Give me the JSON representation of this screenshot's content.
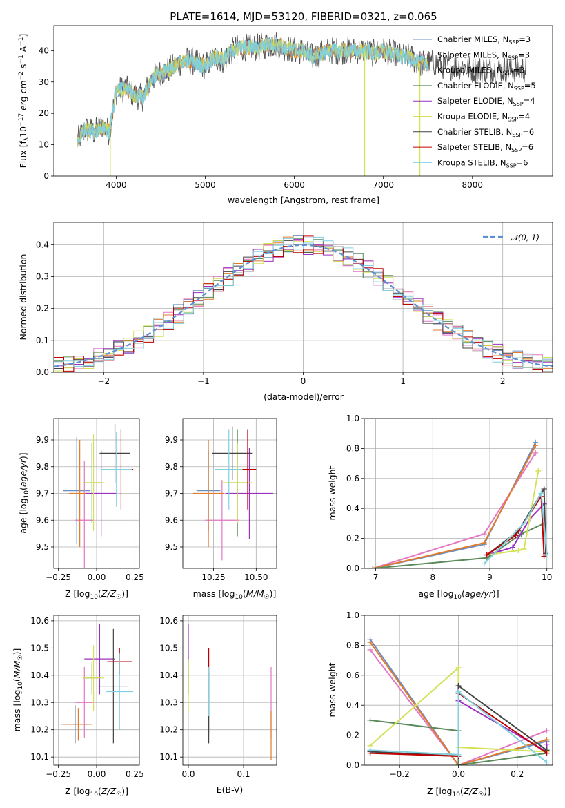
{
  "figure_title": "PLATE=1614, MJD=53120, FIBERID=0321, z=0.065",
  "colors": {
    "Chabrier MILES": "#6c8ebf",
    "Salpeter MILES": "#e377c2",
    "Kroupa MILES": "#e07b2a",
    "Chabrier ELODIE": "#5a8a5a",
    "Salpeter ELODIE": "#9b30c0",
    "Kroupa ELODIE": "#d4e157",
    "Chabrier STELIB": "#444444",
    "Salpeter STELIB": "#c00000",
    "Kroupa STELIB": "#80d0e0"
  },
  "chart_data": [
    {
      "id": "spectrum",
      "type": "line",
      "title": "PLATE=1614, MJD=53120, FIBERID=0321, z=0.065",
      "xlabel": "wavelength [Angstrom, rest frame]",
      "ylabel": "Flux [f_λ 10^-17 erg cm^-2 s^-1 A^-1]",
      "xlim": [
        3300,
        8900
      ],
      "ylim": [
        0,
        48
      ],
      "xticks": [
        4000,
        5000,
        6000,
        7000,
        8000
      ],
      "yticks": [
        0,
        10,
        20,
        30,
        40
      ],
      "grid": false,
      "legend_position": "top-right",
      "legend": [
        "Chabrier MILES, N_SSP=3",
        "Salpeter MILES, N_SSP=3",
        "Kroupa MILES, N_SSP=3",
        "Chabrier ELODIE, N_SSP=5",
        "Salpeter ELODIE, N_SSP=4",
        "Kroupa ELODIE, N_SSP=4",
        "Chabrier STELIB, N_SSP=6",
        "Salpeter STELIB, N_SSP=6",
        "Kroupa STELIB, N_SSP=6"
      ],
      "continuum": {
        "x": [
          3560,
          3650,
          3750,
          3850,
          3920,
          4000,
          4100,
          4200,
          4300,
          4400,
          4500,
          4600,
          4700,
          4800,
          4900,
          5000,
          5100,
          5200,
          5300,
          5400,
          5500,
          5600,
          5700,
          5800,
          5900,
          6000,
          6100,
          6200,
          6300,
          6400,
          6500,
          6600,
          6700,
          6800,
          6900,
          7000,
          7100,
          7200,
          7300,
          7400,
          7500,
          7600,
          7700,
          7800,
          7900,
          8000,
          8100,
          8200,
          8300,
          8400,
          8500,
          8600
        ],
        "y": [
          11,
          15,
          14,
          16,
          14,
          27,
          28,
          26,
          25,
          31,
          33,
          34,
          36,
          37,
          36,
          35,
          38,
          37,
          40,
          41,
          41,
          41,
          42,
          42,
          41,
          40,
          40,
          38,
          39,
          40,
          40,
          40,
          40,
          40,
          39,
          40,
          39,
          38,
          38,
          36,
          36,
          36,
          35,
          35,
          35,
          34,
          34,
          34,
          34,
          34,
          34,
          34
        ]
      },
      "absorption_features": [
        {
          "x": 3934,
          "y": 0
        },
        {
          "x": 6790,
          "y": 0
        },
        {
          "x": 7410,
          "y": 0
        }
      ]
    },
    {
      "id": "residuals",
      "type": "histogram",
      "xlabel": "(data-model)/error",
      "ylabel": "Normed distribution",
      "xlim": [
        -2.5,
        2.5
      ],
      "ylim": [
        0,
        0.47
      ],
      "xticks": [
        -2,
        -1,
        0,
        1,
        2
      ],
      "yticks": [
        0.0,
        0.1,
        0.2,
        0.3,
        0.4
      ],
      "grid": true,
      "bins": {
        "start": -2.5,
        "width": 0.1
      },
      "legend": [
        "𝒩(0, 1)"
      ],
      "legend_position": "top-right",
      "reference_curve": {
        "name": "𝒩(0, 1)",
        "mean": 0,
        "sigma": 1
      }
    },
    {
      "id": "age_vs_Z",
      "type": "errorbar",
      "xlabel": "Z [log10(Z/Z☉)]",
      "ylabel": "age [log10(age/yr)]",
      "xlim": [
        -0.28,
        0.28
      ],
      "ylim": [
        9.42,
        9.98
      ],
      "xticks": [
        -0.25,
        0.0,
        0.25
      ],
      "yticks": [
        9.5,
        9.6,
        9.7,
        9.8,
        9.9
      ],
      "points": [
        {
          "model": "Chabrier MILES",
          "x": -0.13,
          "xerr": 0.09,
          "y": 9.71,
          "yerr": 0.2
        },
        {
          "model": "Salpeter MILES",
          "x": -0.08,
          "xerr": 0.06,
          "y": 9.6,
          "yerr": 0.22
        },
        {
          "model": "Kroupa MILES",
          "x": -0.11,
          "xerr": 0.07,
          "y": 9.7,
          "yerr": 0.2
        },
        {
          "model": "Chabrier ELODIE",
          "x": -0.03,
          "xerr": 0.06,
          "y": 9.74,
          "yerr": 0.15
        },
        {
          "model": "Salpeter ELODIE",
          "x": 0.03,
          "xerr": 0.1,
          "y": 9.7,
          "yerr": 0.16
        },
        {
          "model": "Kroupa ELODIE",
          "x": -0.02,
          "xerr": 0.07,
          "y": 9.74,
          "yerr": 0.18
        },
        {
          "model": "Chabrier STELIB",
          "x": 0.12,
          "xerr": 0.1,
          "y": 9.85,
          "yerr": 0.11
        },
        {
          "model": "Salpeter STELIB",
          "x": 0.16,
          "xerr": 0.08,
          "y": 9.79,
          "yerr": 0.15
        },
        {
          "model": "Kroupa STELIB",
          "x": 0.13,
          "xerr": 0.1,
          "y": 9.79,
          "yerr": 0.14
        }
      ]
    },
    {
      "id": "age_vs_mass",
      "type": "errorbar",
      "xlabel": "mass [log10(M/M☉)]",
      "ylabel": "",
      "xlim": [
        10.07,
        10.62
      ],
      "ylim": [
        9.42,
        9.98
      ],
      "xticks": [
        10.25,
        10.5
      ],
      "yticks": [
        9.5,
        9.6,
        9.7,
        9.8,
        9.9
      ],
      "points": [
        {
          "model": "Chabrier MILES",
          "x": 10.22,
          "xerr": 0.07,
          "y": 9.71,
          "yerr": 0.15
        },
        {
          "model": "Salpeter MILES",
          "x": 10.3,
          "xerr": 0.1,
          "y": 9.6,
          "yerr": 0.15
        },
        {
          "model": "Kroupa MILES",
          "x": 10.22,
          "xerr": 0.09,
          "y": 9.7,
          "yerr": 0.2
        },
        {
          "model": "Chabrier ELODIE",
          "x": 10.39,
          "xerr": 0.06,
          "y": 9.74,
          "yerr": 0.2
        },
        {
          "model": "Salpeter ELODIE",
          "x": 10.46,
          "xerr": 0.14,
          "y": 9.7,
          "yerr": 0.17
        },
        {
          "model": "Kroupa ELODIE",
          "x": 10.39,
          "xerr": 0.09,
          "y": 9.74,
          "yerr": 0.15
        },
        {
          "model": "Chabrier STELIB",
          "x": 10.36,
          "xerr": 0.12,
          "y": 9.85,
          "yerr": 0.1
        },
        {
          "model": "Salpeter STELIB",
          "x": 10.45,
          "xerr": 0.05,
          "y": 9.79,
          "yerr": 0.15
        },
        {
          "model": "Kroupa STELIB",
          "x": 10.34,
          "xerr": 0.08,
          "y": 9.79,
          "yerr": 0.15
        }
      ]
    },
    {
      "id": "weight_vs_age",
      "type": "line",
      "xlabel": "age log10(age/yr)",
      "ylabel": "mass weight",
      "xlim": [
        6.8,
        10.1
      ],
      "ylim": [
        0,
        1
      ],
      "xticks": [
        7,
        8,
        9,
        10
      ],
      "yticks": [
        0.0,
        0.2,
        0.4,
        0.6,
        0.8,
        1.0
      ],
      "grid": true,
      "series": [
        {
          "model": "Chabrier MILES",
          "x": [
            6.95,
            8.9,
            9.8
          ],
          "y": [
            0.0,
            0.16,
            0.84
          ]
        },
        {
          "model": "Salpeter MILES",
          "x": [
            6.95,
            8.9,
            9.8
          ],
          "y": [
            0.0,
            0.23,
            0.77
          ]
        },
        {
          "model": "Kroupa MILES",
          "x": [
            6.95,
            8.9,
            9.8
          ],
          "y": [
            0.0,
            0.17,
            0.82
          ]
        },
        {
          "model": "Chabrier ELODIE",
          "x": [
            6.95,
            8.95,
            9.55,
            9.95
          ],
          "y": [
            0.0,
            0.07,
            0.23,
            0.3
          ]
        },
        {
          "model": "Salpeter ELODIE",
          "x": [
            8.95,
            9.4,
            9.7,
            9.95
          ],
          "y": [
            0.09,
            0.14,
            0.33,
            0.43
          ]
        },
        {
          "model": "Kroupa ELODIE",
          "x": [
            8.95,
            9.5,
            9.6,
            9.85
          ],
          "y": [
            0.09,
            0.12,
            0.13,
            0.65
          ]
        },
        {
          "model": "Chabrier STELIB",
          "x": [
            8.95,
            9.5,
            9.95,
            9.98
          ],
          "y": [
            0.09,
            0.25,
            0.53,
            0.1
          ]
        },
        {
          "model": "Salpeter STELIB",
          "x": [
            8.95,
            9.45,
            9.9,
            9.95
          ],
          "y": [
            0.09,
            0.22,
            0.48,
            0.08
          ]
        },
        {
          "model": "Kroupa STELIB",
          "x": [
            8.9,
            9.6,
            9.9,
            10.0
          ],
          "y": [
            0.03,
            0.3,
            0.5,
            0.09
          ]
        }
      ]
    },
    {
      "id": "mass_vs_Z",
      "type": "errorbar",
      "xlabel": "Z [log10(Z/Z☉)]",
      "ylabel": "mass [log10(M/M☉)]",
      "xlim": [
        -0.28,
        0.28
      ],
      "ylim": [
        10.07,
        10.62
      ],
      "xticks": [
        -0.25,
        0.0,
        0.25
      ],
      "yticks": [
        10.1,
        10.2,
        10.3,
        10.4,
        10.5,
        10.6
      ],
      "points": [
        {
          "model": "Chabrier MILES",
          "x": -0.14,
          "xerr": 0.09,
          "y": 10.22,
          "yerr": 0.07
        },
        {
          "model": "Salpeter MILES",
          "x": -0.08,
          "xerr": 0.06,
          "y": 10.3,
          "yerr": 0.13
        },
        {
          "model": "Kroupa MILES",
          "x": -0.12,
          "xerr": 0.09,
          "y": 10.22,
          "yerr": 0.06
        },
        {
          "model": "Chabrier ELODIE",
          "x": -0.03,
          "xerr": 0.06,
          "y": 10.39,
          "yerr": 0.06
        },
        {
          "model": "Salpeter ELODIE",
          "x": 0.02,
          "xerr": 0.1,
          "y": 10.46,
          "yerr": 0.13
        },
        {
          "model": "Kroupa ELODIE",
          "x": -0.02,
          "xerr": 0.07,
          "y": 10.39,
          "yerr": 0.12
        },
        {
          "model": "Chabrier STELIB",
          "x": 0.11,
          "xerr": 0.1,
          "y": 10.36,
          "yerr": 0.21
        },
        {
          "model": "Salpeter STELIB",
          "x": 0.15,
          "xerr": 0.08,
          "y": 10.45,
          "yerr": 0.05
        },
        {
          "model": "Kroupa STELIB",
          "x": 0.15,
          "xerr": 0.09,
          "y": 10.34,
          "yerr": 0.14
        }
      ]
    },
    {
      "id": "mass_vs_EBV",
      "type": "errorbar",
      "xlabel": "E(B-V)",
      "ylabel": "",
      "xlim": [
        -0.01,
        0.16
      ],
      "ylim": [
        10.07,
        10.62
      ],
      "xticks": [
        0.0,
        0.1
      ],
      "yticks": [
        10.1,
        10.2,
        10.3,
        10.4,
        10.5,
        10.6
      ],
      "points": [
        {
          "model": "Chabrier MILES",
          "x": 0.037,
          "y": 10.3,
          "yerr": 0.11
        },
        {
          "model": "Salpeter MILES",
          "x": 0.15,
          "y": 10.3,
          "yerr": 0.13
        },
        {
          "model": "Kroupa MILES",
          "x": 0.15,
          "y": 10.18,
          "yerr": 0.09
        },
        {
          "model": "Chabrier ELODIE",
          "x": 0.0,
          "y": 10.4,
          "yerr": 0.07
        },
        {
          "model": "Salpeter ELODIE",
          "x": 0.0,
          "y": 10.46,
          "yerr": 0.13
        },
        {
          "model": "Kroupa ELODIE",
          "x": 0.0,
          "y": 10.36,
          "yerr": 0.1
        },
        {
          "model": "Chabrier STELIB",
          "x": 0.037,
          "y": 10.28,
          "yerr": 0.13
        },
        {
          "model": "Salpeter STELIB",
          "x": 0.037,
          "y": 10.45,
          "yerr": 0.05
        },
        {
          "model": "Kroupa STELIB",
          "x": 0.037,
          "y": 10.34,
          "yerr": 0.09
        }
      ]
    },
    {
      "id": "weight_vs_Z",
      "type": "line",
      "xlabel": "Z [log10(Z/Z☉)]",
      "ylabel": "mass weight",
      "xlim": [
        -0.32,
        0.32
      ],
      "ylim": [
        0,
        1
      ],
      "xticks": [
        -0.2,
        0.0,
        0.2
      ],
      "yticks": [
        0.0,
        0.2,
        0.4,
        0.6,
        0.8,
        1.0
      ],
      "grid": true,
      "series": [
        {
          "model": "Chabrier MILES",
          "x": [
            -0.3,
            0.0,
            0.3
          ],
          "y": [
            0.84,
            0.0,
            0.16
          ]
        },
        {
          "model": "Salpeter MILES",
          "x": [
            -0.3,
            0.0,
            0.3
          ],
          "y": [
            0.77,
            0.0,
            0.23
          ]
        },
        {
          "model": "Kroupa MILES",
          "x": [
            -0.3,
            0.0,
            0.3
          ],
          "y": [
            0.82,
            0.0,
            0.17
          ]
        },
        {
          "model": "Chabrier ELODIE",
          "x": [
            -0.3,
            0.0,
            0.0,
            0.3
          ],
          "y": [
            0.3,
            0.23,
            0.0,
            0.08
          ]
        },
        {
          "model": "Salpeter ELODIE",
          "x": [
            0.0,
            0.3,
            0.3
          ],
          "y": [
            0.43,
            0.09,
            0.14
          ]
        },
        {
          "model": "Kroupa ELODIE",
          "x": [
            -0.3,
            0.0,
            0.0,
            0.3
          ],
          "y": [
            0.13,
            0.65,
            0.12,
            0.09
          ]
        },
        {
          "model": "Chabrier STELIB",
          "x": [
            -0.3,
            0.0,
            0.0,
            0.3
          ],
          "y": [
            0.09,
            0.06,
            0.53,
            0.1
          ]
        },
        {
          "model": "Salpeter STELIB",
          "x": [
            -0.3,
            0.0,
            0.0,
            0.3
          ],
          "y": [
            0.08,
            0.06,
            0.48,
            0.08
          ]
        },
        {
          "model": "Kroupa STELIB",
          "x": [
            -0.3,
            0.0,
            0.0,
            0.3
          ],
          "y": [
            0.1,
            0.07,
            0.49,
            0.02
          ]
        }
      ]
    }
  ]
}
